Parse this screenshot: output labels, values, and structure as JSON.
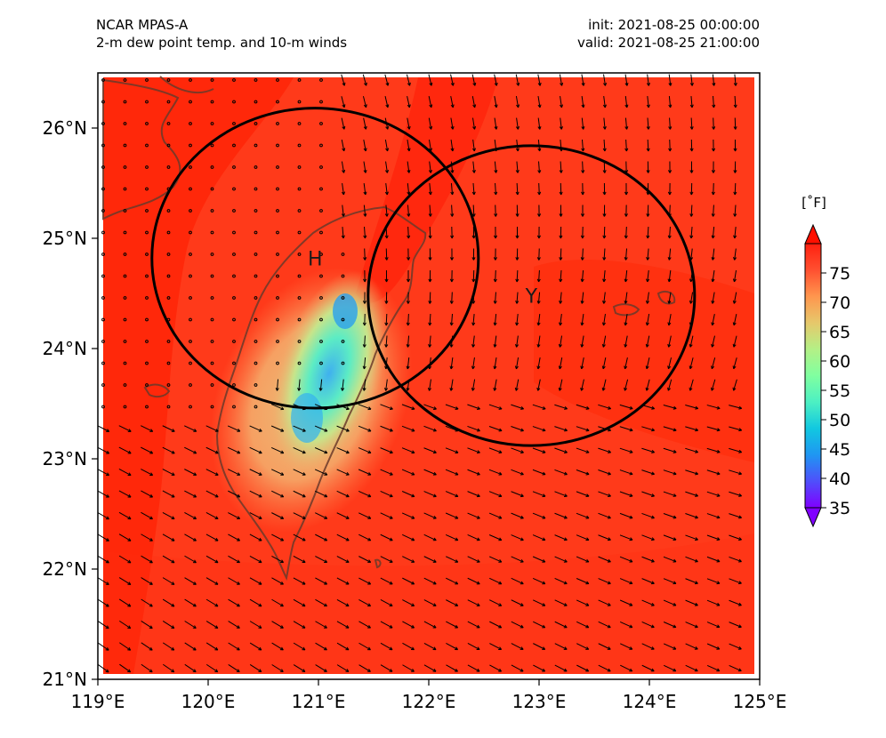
{
  "header": {
    "model": "NCAR MPAS-A",
    "variable": "2-m dew point temp. and 10-m winds",
    "init": "init: 2021-08-25 00:00:00",
    "valid": "valid: 2021-08-25 21:00:00"
  },
  "axes": {
    "lon_ticks": [
      "119°E",
      "120°E",
      "121°E",
      "122°E",
      "123°E",
      "124°E",
      "125°E"
    ],
    "lat_ticks": [
      "26°N",
      "25°N",
      "24°N",
      "23°N",
      "22°N",
      "21°N"
    ]
  },
  "colorbar": {
    "unit": "[˚F]",
    "ticks": [
      "75",
      "70",
      "65",
      "60",
      "55",
      "50",
      "45",
      "40",
      "35"
    ],
    "range": [
      35,
      80
    ]
  },
  "markers": [
    {
      "label": "H",
      "lon": 120.97,
      "lat": 24.82
    },
    {
      "label": "Y",
      "lon": 122.93,
      "lat": 24.48
    }
  ],
  "circles": [
    {
      "center_lon": 120.97,
      "center_lat": 24.82,
      "radius_deg_lon": 1.48,
      "radius_deg_lat": 1.36
    },
    {
      "center_lon": 122.93,
      "center_lat": 24.48,
      "radius_deg_lon": 1.48,
      "radius_deg_lat": 1.36
    }
  ],
  "colors": {
    "field_base": "#ff3a1a",
    "field_warm": "#ff1800",
    "coast": "#6b3a2a",
    "circle": "#000000",
    "colorbar_stops": [
      "#8000ff",
      "#4f4ffb",
      "#1f96f2",
      "#11c8e0",
      "#4cf0c3",
      "#80ffa0",
      "#b4f086",
      "#e6c86b",
      "#ff964e",
      "#ff5030",
      "#ff2010"
    ]
  }
}
